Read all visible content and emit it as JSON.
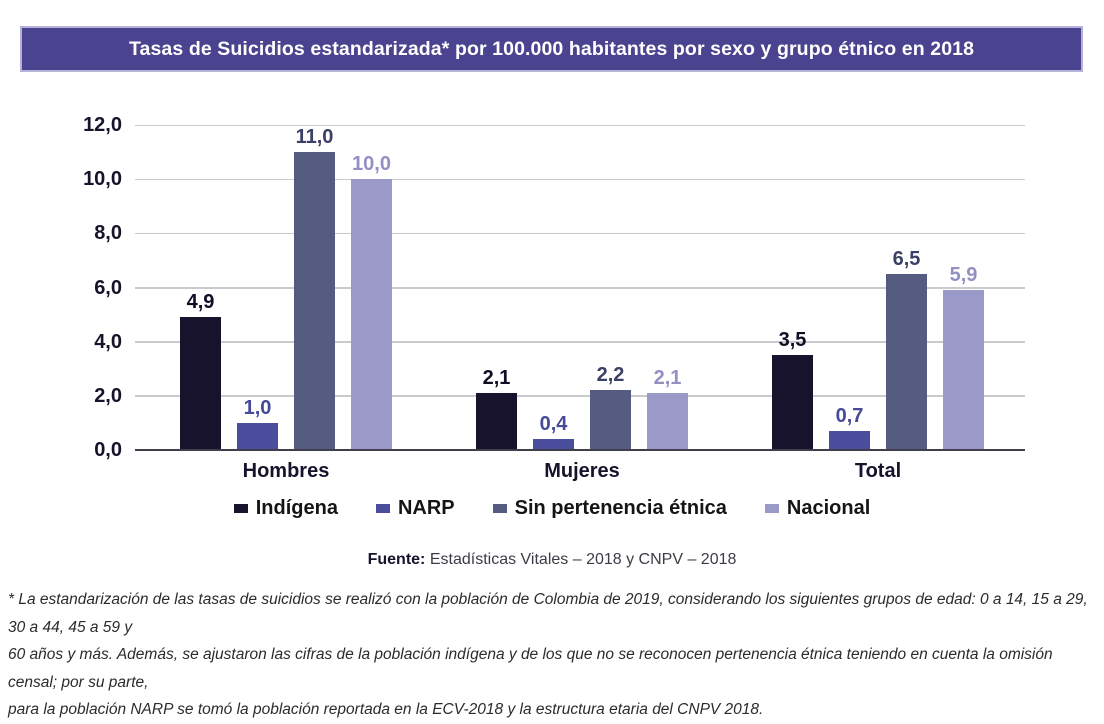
{
  "title": "Tasas de Suicidios estandarizada* por 100.000 habitantes por sexo y grupo étnico en 2018",
  "chart_data": {
    "type": "bar",
    "title": "Tasas de Suicidios estandarizada* por 100.000 habitantes por sexo y grupo étnico en 2018",
    "categories": [
      "Hombres",
      "Mujeres",
      "Total"
    ],
    "series": [
      {
        "name": "Indígena",
        "values": [
          4.9,
          2.1,
          3.5
        ],
        "labels": [
          "4,9",
          "2,1",
          "3,5"
        ],
        "color": "#17132d",
        "label_color": "#100d24"
      },
      {
        "name": "NARP",
        "values": [
          1.0,
          0.4,
          0.7
        ],
        "labels": [
          "1,0",
          "0,4",
          "0,7"
        ],
        "color": "#4b4e9d",
        "label_color": "#474a99"
      },
      {
        "name": "Sin pertenencia étnica",
        "values": [
          11.0,
          2.2,
          6.5
        ],
        "labels": [
          "11,0",
          "2,2",
          "6,5"
        ],
        "color": "#565c80",
        "label_color": "#3a4066"
      },
      {
        "name": "Nacional",
        "values": [
          10.0,
          2.1,
          5.9
        ],
        "labels": [
          "10,0",
          "2,1",
          "5,9"
        ],
        "color": "#9a99c8",
        "label_color": "#9290c3"
      }
    ],
    "y_axis": {
      "min": 0,
      "max": 12,
      "step": 2,
      "ticks": [
        0,
        2,
        4,
        6,
        8,
        10,
        12
      ],
      "tick_labels": [
        "0,0",
        "2,0",
        "4,0",
        "6,0",
        "8,0",
        "10,0",
        "12,0"
      ]
    },
    "xlabel": "",
    "ylabel": "",
    "grid": true,
    "legend_position": "bottom"
  },
  "source": {
    "label": "Fuente:",
    "text": "Estadísticas Vitales – 2018 y CNPV – 2018"
  },
  "footnote": {
    "lines": [
      "* La estandarización de las tasas de suicidios se realizó con la población de Colombia de 2019, considerando los siguientes grupos de edad: 0 a 14, 15 a 29, 30 a 44, 45 a 59 y",
      "60 años y más. Además, se ajustaron las cifras de la población indígena y de los que no se reconocen pertenencia étnica teniendo en cuenta la omisión censal; por su parte,",
      "para la población NARP se tomó la población reportada en la ECV-2018 y la estructura etaria del CNPV 2018."
    ]
  },
  "colors": {
    "title_bg": "#4a4390",
    "title_border": "#b6b3d8",
    "title_text": "#ffffff",
    "gridline": "#c9c9ce",
    "baseline": "#413f4c",
    "axis_text": "#16132b",
    "legend_text": "#151515",
    "source_bold": "#16132b",
    "source_text": "#3c3c46",
    "footnote_text": "#2b2b2b"
  },
  "layout": {
    "group_lefts": [
      45,
      341,
      637
    ],
    "group_width": 212
  }
}
